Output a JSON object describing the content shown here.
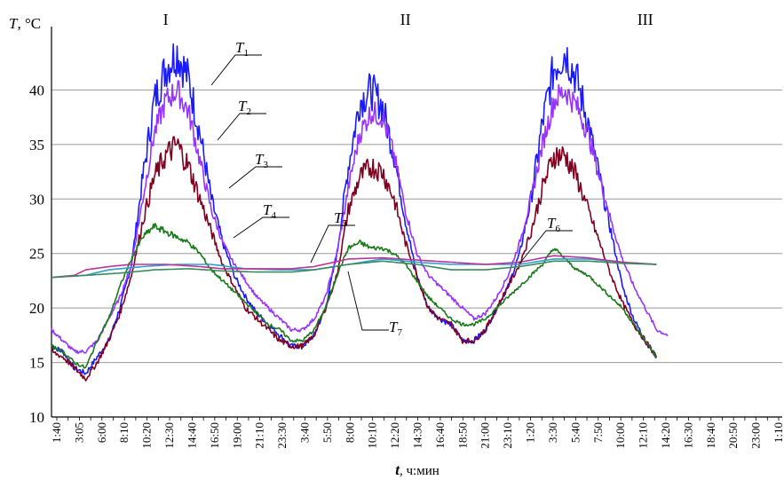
{
  "chart_data": {
    "type": "line",
    "ylabel": "T, °C",
    "xlabel": "t, ч:мин",
    "ylim": [
      10,
      45
    ],
    "yticks": [
      10,
      15,
      20,
      25,
      30,
      35,
      40
    ],
    "grid": "horizontal",
    "section_labels": [
      {
        "text": "I",
        "x": 10
      },
      {
        "text": "II",
        "x": 31
      },
      {
        "text": "III",
        "x": 52
      }
    ],
    "x_tick_labels": [
      "1:40",
      "3:05",
      "6:00",
      "8:10",
      "10:20",
      "12:30",
      "14:40",
      "16:50",
      "19:00",
      "21:10",
      "23:30",
      "3:40",
      "5:50",
      "8:00",
      "10:10",
      "12:20",
      "14:30",
      "16:40",
      "18:50",
      "21:00",
      "23:10",
      "1:20",
      "3:30",
      "5:40",
      "7:50",
      "10:00",
      "12:10",
      "14:20",
      "16:30",
      "18:40",
      "20:50",
      "23:00",
      "1:10"
    ],
    "x_range": [
      0,
      64
    ],
    "series": [
      {
        "name": "T1",
        "label": "T",
        "sub": "1",
        "color": "#1a1aff",
        "noise": 1.0,
        "points": [
          [
            0,
            16.5
          ],
          [
            1,
            16
          ],
          [
            2,
            14.5
          ],
          [
            3,
            14
          ],
          [
            4,
            15.5
          ],
          [
            5,
            17
          ],
          [
            6,
            20
          ],
          [
            7,
            24
          ],
          [
            8,
            32
          ],
          [
            9,
            39
          ],
          [
            10,
            42
          ],
          [
            11,
            43.5
          ],
          [
            12,
            41
          ],
          [
            13,
            36
          ],
          [
            14,
            30
          ],
          [
            15,
            26
          ],
          [
            16,
            23
          ],
          [
            17,
            21
          ],
          [
            18,
            19.5
          ],
          [
            19,
            18.5
          ],
          [
            20,
            17.5
          ],
          [
            21,
            16.5
          ],
          [
            22,
            16.5
          ],
          [
            23,
            17.5
          ],
          [
            24,
            20
          ],
          [
            25,
            25
          ],
          [
            26,
            33
          ],
          [
            27,
            39
          ],
          [
            28,
            40
          ],
          [
            29,
            38.5
          ],
          [
            30,
            34
          ],
          [
            31,
            28
          ],
          [
            32,
            23
          ],
          [
            33,
            20
          ],
          [
            34,
            19
          ],
          [
            35,
            18.5
          ],
          [
            36,
            17
          ],
          [
            37,
            17
          ],
          [
            38,
            18
          ],
          [
            39,
            20
          ],
          [
            40,
            22
          ],
          [
            41,
            25
          ],
          [
            42,
            30
          ],
          [
            43,
            37
          ],
          [
            44,
            42
          ],
          [
            45,
            43.5
          ],
          [
            46,
            41
          ],
          [
            47,
            37
          ],
          [
            48,
            32
          ],
          [
            49,
            27
          ],
          [
            50,
            22
          ],
          [
            51,
            19
          ],
          [
            52,
            17
          ],
          [
            53,
            15.5
          ]
        ]
      },
      {
        "name": "T2",
        "label": "T",
        "sub": "2",
        "color": "#9933ff",
        "noise": 0.7,
        "points": [
          [
            0,
            18
          ],
          [
            1,
            17
          ],
          [
            2,
            16
          ],
          [
            3,
            16
          ],
          [
            4,
            17
          ],
          [
            5,
            19
          ],
          [
            6,
            21
          ],
          [
            7,
            24
          ],
          [
            8,
            30
          ],
          [
            9,
            36
          ],
          [
            10,
            39
          ],
          [
            11,
            40
          ],
          [
            12,
            38
          ],
          [
            13,
            33.5
          ],
          [
            14,
            29
          ],
          [
            15,
            26
          ],
          [
            16,
            24
          ],
          [
            17,
            22.5
          ],
          [
            18,
            21
          ],
          [
            19,
            20
          ],
          [
            20,
            19
          ],
          [
            21,
            18
          ],
          [
            22,
            18
          ],
          [
            23,
            19
          ],
          [
            24,
            21
          ],
          [
            25,
            25
          ],
          [
            26,
            31
          ],
          [
            27,
            36
          ],
          [
            28,
            38
          ],
          [
            29,
            37.5
          ],
          [
            30,
            34
          ],
          [
            31,
            29
          ],
          [
            32,
            25
          ],
          [
            33,
            23
          ],
          [
            34,
            22
          ],
          [
            35,
            21
          ],
          [
            36,
            20
          ],
          [
            37,
            19
          ],
          [
            38,
            19.5
          ],
          [
            39,
            21
          ],
          [
            40,
            23
          ],
          [
            41,
            26
          ],
          [
            42,
            30
          ],
          [
            43,
            35
          ],
          [
            44,
            39
          ],
          [
            45,
            40
          ],
          [
            46,
            38.5
          ],
          [
            47,
            36
          ],
          [
            48,
            32
          ],
          [
            49,
            28
          ],
          [
            50,
            24.5
          ],
          [
            51,
            22
          ],
          [
            52,
            20
          ],
          [
            53,
            18
          ],
          [
            54,
            17.5
          ]
        ]
      },
      {
        "name": "T3",
        "label": "T",
        "sub": "3",
        "color": "#800020",
        "noise": 1.0,
        "points": [
          [
            0,
            16
          ],
          [
            1,
            15.5
          ],
          [
            2,
            14.5
          ],
          [
            3,
            13.5
          ],
          [
            4,
            15
          ],
          [
            5,
            17
          ],
          [
            6,
            19.5
          ],
          [
            7,
            23
          ],
          [
            8,
            28
          ],
          [
            9,
            32
          ],
          [
            10,
            34
          ],
          [
            11,
            35
          ],
          [
            12,
            33
          ],
          [
            13,
            30
          ],
          [
            14,
            27
          ],
          [
            15,
            24
          ],
          [
            16,
            22
          ],
          [
            17,
            20
          ],
          [
            18,
            19
          ],
          [
            19,
            18
          ],
          [
            20,
            17
          ],
          [
            21,
            16.5
          ],
          [
            22,
            16.5
          ],
          [
            23,
            17.5
          ],
          [
            24,
            20
          ],
          [
            25,
            23
          ],
          [
            26,
            29
          ],
          [
            27,
            32
          ],
          [
            28,
            33
          ],
          [
            29,
            32.5
          ],
          [
            30,
            30
          ],
          [
            31,
            26
          ],
          [
            32,
            23
          ],
          [
            33,
            20
          ],
          [
            34,
            19
          ],
          [
            35,
            18.5
          ],
          [
            36,
            17
          ],
          [
            37,
            17
          ],
          [
            38,
            18
          ],
          [
            39,
            20
          ],
          [
            40,
            22
          ],
          [
            41,
            24
          ],
          [
            42,
            27
          ],
          [
            43,
            31
          ],
          [
            44,
            34
          ],
          [
            45,
            34
          ],
          [
            46,
            32
          ],
          [
            47,
            29
          ],
          [
            48,
            26
          ],
          [
            49,
            23
          ],
          [
            50,
            20.5
          ],
          [
            51,
            18.5
          ],
          [
            52,
            17
          ],
          [
            53,
            15.5
          ]
        ]
      },
      {
        "name": "T4",
        "label": "T",
        "sub": "4",
        "color": "#1a7a1a",
        "noise": 0.6,
        "points": [
          [
            0,
            16.5
          ],
          [
            1,
            16
          ],
          [
            2,
            15
          ],
          [
            3,
            14.5
          ],
          [
            4,
            17
          ],
          [
            5,
            19
          ],
          [
            6,
            22
          ],
          [
            7,
            24.5
          ],
          [
            8,
            26.5
          ],
          [
            9,
            27.5
          ],
          [
            10,
            27
          ],
          [
            11,
            26.5
          ],
          [
            12,
            26
          ],
          [
            13,
            25
          ],
          [
            14,
            23.5
          ],
          [
            15,
            22.5
          ],
          [
            16,
            21.5
          ],
          [
            17,
            20.5
          ],
          [
            18,
            19.5
          ],
          [
            19,
            18.5
          ],
          [
            20,
            18
          ],
          [
            21,
            17
          ],
          [
            22,
            17
          ],
          [
            23,
            18
          ],
          [
            24,
            20
          ],
          [
            25,
            23
          ],
          [
            26,
            25.5
          ],
          [
            27,
            26
          ],
          [
            28,
            25.5
          ],
          [
            29,
            25.5
          ],
          [
            30,
            25
          ],
          [
            31,
            24
          ],
          [
            32,
            22.5
          ],
          [
            33,
            21
          ],
          [
            34,
            20
          ],
          [
            35,
            19
          ],
          [
            36,
            18.5
          ],
          [
            37,
            18.5
          ],
          [
            38,
            19
          ],
          [
            39,
            20
          ],
          [
            40,
            21
          ],
          [
            41,
            22
          ],
          [
            42,
            23
          ],
          [
            43,
            24
          ],
          [
            44,
            25.5
          ],
          [
            45,
            24.5
          ],
          [
            46,
            23.5
          ],
          [
            47,
            23
          ],
          [
            48,
            22
          ],
          [
            49,
            21
          ],
          [
            50,
            20
          ],
          [
            51,
            18.5
          ],
          [
            52,
            17
          ],
          [
            53,
            15.5
          ]
        ]
      },
      {
        "name": "T5",
        "label": "T",
        "sub": "5",
        "color": "#2aa0d0",
        "noise": 0,
        "points": [
          [
            0,
            22.8
          ],
          [
            3,
            23
          ],
          [
            5,
            23.5
          ],
          [
            8,
            23.8
          ],
          [
            11,
            24
          ],
          [
            14,
            24
          ],
          [
            17,
            23.6
          ],
          [
            20,
            23.5
          ],
          [
            23,
            23.5
          ],
          [
            26,
            24
          ],
          [
            29,
            24.5
          ],
          [
            32,
            24.2
          ],
          [
            35,
            24
          ],
          [
            38,
            24
          ],
          [
            41,
            24
          ],
          [
            44,
            24.5
          ],
          [
            47,
            24.5
          ],
          [
            50,
            24.2
          ],
          [
            53,
            24
          ]
        ]
      },
      {
        "name": "T6",
        "label": "T",
        "sub": "6",
        "color": "#bb3399",
        "noise": 0,
        "points": [
          [
            0,
            22.8
          ],
          [
            2,
            23
          ],
          [
            3,
            23.5
          ],
          [
            5,
            23.8
          ],
          [
            7,
            24
          ],
          [
            10,
            24
          ],
          [
            13,
            23.8
          ],
          [
            15,
            23.6
          ],
          [
            18,
            23.6
          ],
          [
            21,
            23.6
          ],
          [
            23,
            23.8
          ],
          [
            26,
            24.5
          ],
          [
            29,
            24.6
          ],
          [
            32,
            24.4
          ],
          [
            35,
            24.2
          ],
          [
            38,
            24
          ],
          [
            41,
            24.2
          ],
          [
            44,
            24.8
          ],
          [
            47,
            24.6
          ],
          [
            50,
            24.2
          ],
          [
            53,
            24
          ]
        ]
      },
      {
        "name": "T7",
        "label": "T",
        "sub": "7",
        "color": "#3a8a5a",
        "noise": 0,
        "points": [
          [
            0,
            22.8
          ],
          [
            3,
            23
          ],
          [
            6,
            23.2
          ],
          [
            9,
            23.5
          ],
          [
            12,
            23.6
          ],
          [
            15,
            23.4
          ],
          [
            18,
            23.3
          ],
          [
            21,
            23.3
          ],
          [
            23,
            23.5
          ],
          [
            26,
            24
          ],
          [
            29,
            24.3
          ],
          [
            32,
            24
          ],
          [
            35,
            23.5
          ],
          [
            38,
            23.5
          ],
          [
            41,
            23.8
          ],
          [
            44,
            24.3
          ],
          [
            47,
            24.3
          ],
          [
            50,
            24.1
          ],
          [
            53,
            24
          ]
        ]
      }
    ]
  }
}
